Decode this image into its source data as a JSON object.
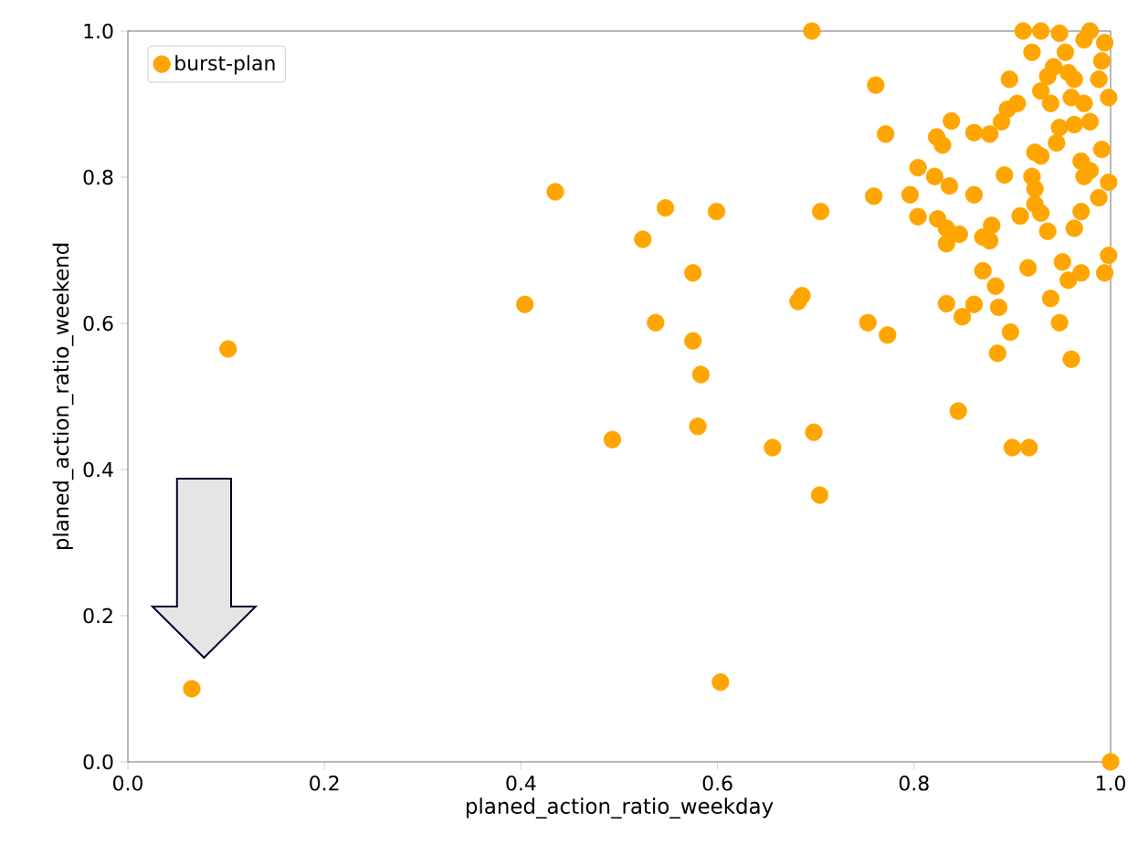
{
  "chart_data": {
    "type": "scatter",
    "xlabel": "planed_action_ratio_weekday",
    "ylabel": "planed_action_ratio_weekend",
    "xlim": [
      0,
      1
    ],
    "ylim": [
      0,
      1
    ],
    "xticks": [
      {
        "value": 0,
        "label": "0.0"
      },
      0.2,
      0.4,
      0.6,
      0.8,
      {
        "value": 1,
        "label": "1.0"
      }
    ],
    "yticks": [
      {
        "value": 0,
        "label": "0.0"
      },
      0.2,
      0.4,
      0.6,
      0.8,
      {
        "value": 1,
        "label": "1.0"
      }
    ],
    "legend": "top left",
    "marker": "circle",
    "grid": false,
    "series": [
      {
        "name": "burst-plan",
        "color": "#ffa500",
        "x": [
          0.065,
          0.102,
          0.404,
          0.435,
          0.493,
          0.524,
          0.547,
          0.537,
          0.575,
          0.575,
          0.583,
          0.58,
          0.599,
          0.603,
          0.656,
          0.682,
          0.686,
          0.696,
          0.698,
          0.704,
          0.705,
          0.753,
          0.761,
          0.771,
          0.759,
          0.773,
          0.804,
          0.796,
          0.804,
          0.821,
          0.836,
          0.823,
          0.829,
          0.838,
          0.824,
          0.833,
          0.846,
          0.833,
          0.861,
          0.861,
          0.877,
          0.87,
          0.879,
          0.877,
          0.892,
          0.897,
          0.895,
          0.889,
          0.905,
          0.908,
          0.92,
          0.923,
          0.923,
          0.929,
          0.923,
          0.929,
          0.92,
          0.911,
          0.87,
          0.883,
          0.886,
          0.861,
          0.849,
          0.833,
          0.898,
          0.885,
          0.916,
          0.939,
          0.948,
          0.96,
          0.951,
          0.957,
          0.97,
          0.994,
          0.998,
          0.936,
          0.963,
          0.97,
          0.988,
          0.979,
          0.97,
          0.991,
          0.973,
          0.945,
          0.948,
          0.939,
          0.929,
          0.936,
          0.942,
          0.957,
          0.963,
          0.96,
          0.973,
          0.979,
          0.963,
          0.988,
          0.991,
          0.994,
          0.973,
          0.954,
          0.948,
          0.929,
          0.979,
          0.998,
          0.998,
          0.9,
          0.917,
          0.845,
          1.0
        ],
        "values": [
          0.1,
          0.565,
          0.626,
          0.78,
          0.441,
          0.715,
          0.758,
          0.601,
          0.669,
          0.576,
          0.53,
          0.459,
          0.753,
          0.109,
          0.43,
          0.63,
          0.638,
          1.0,
          0.451,
          0.365,
          0.753,
          0.601,
          0.926,
          0.859,
          0.774,
          0.584,
          0.813,
          0.776,
          0.746,
          0.801,
          0.788,
          0.855,
          0.844,
          0.877,
          0.743,
          0.73,
          0.722,
          0.709,
          0.776,
          0.861,
          0.859,
          0.718,
          0.734,
          0.713,
          0.803,
          0.934,
          0.893,
          0.876,
          0.901,
          0.747,
          0.801,
          0.784,
          0.763,
          0.751,
          0.834,
          0.829,
          0.971,
          1.0,
          0.672,
          0.651,
          0.622,
          0.626,
          0.609,
          0.627,
          0.588,
          0.559,
          0.676,
          0.634,
          0.601,
          0.551,
          0.684,
          0.659,
          0.669,
          0.669,
          0.693,
          0.726,
          0.73,
          0.753,
          0.772,
          0.809,
          0.822,
          0.838,
          0.801,
          0.847,
          0.868,
          0.901,
          0.918,
          0.938,
          0.951,
          0.943,
          0.934,
          0.909,
          0.901,
          0.876,
          0.872,
          0.934,
          0.959,
          0.984,
          0.988,
          0.971,
          0.997,
          1.0,
          1.0,
          0.909,
          0.793,
          0.43,
          0.43,
          0.48,
          0.0
        ]
      }
    ]
  }
}
